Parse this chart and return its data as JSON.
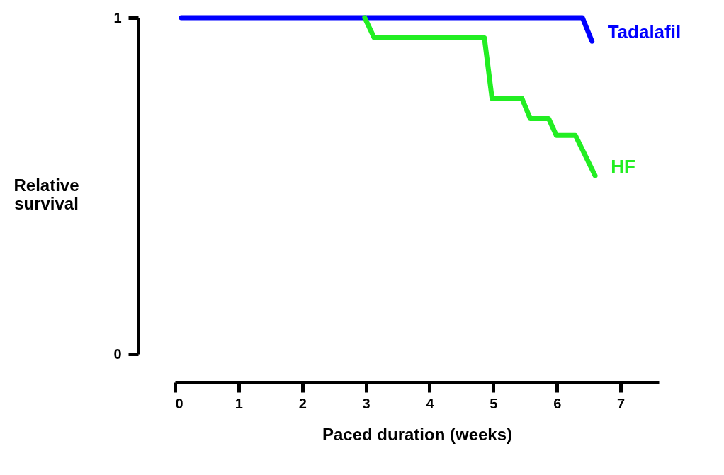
{
  "chart_data": {
    "type": "line",
    "xlabel": "Paced duration (weeks)",
    "ylabel": "Relative survival",
    "xlim": [
      0,
      7.6
    ],
    "xticks": [
      0,
      1,
      2,
      3,
      4,
      5,
      6,
      7
    ],
    "ylim": [
      0,
      1
    ],
    "yticks": [
      0,
      1
    ],
    "grid": false,
    "legend": false,
    "marker": "none",
    "line_style": "solid",
    "series": [
      {
        "name": "Tadalafil",
        "color": "#0000ff",
        "x": [
          0.1,
          6.4,
          6.55
        ],
        "values": [
          1,
          1,
          0.93
        ]
      },
      {
        "name": "HF",
        "color": "#22ee22",
        "x": [
          2.98,
          3.13,
          4.86,
          4.98,
          5.45,
          5.58,
          5.87,
          5.99,
          6.29,
          6.6
        ],
        "values": [
          1,
          0.94,
          0.94,
          0.76,
          0.76,
          0.7,
          0.7,
          0.65,
          0.65,
          0.53
        ]
      }
    ]
  }
}
